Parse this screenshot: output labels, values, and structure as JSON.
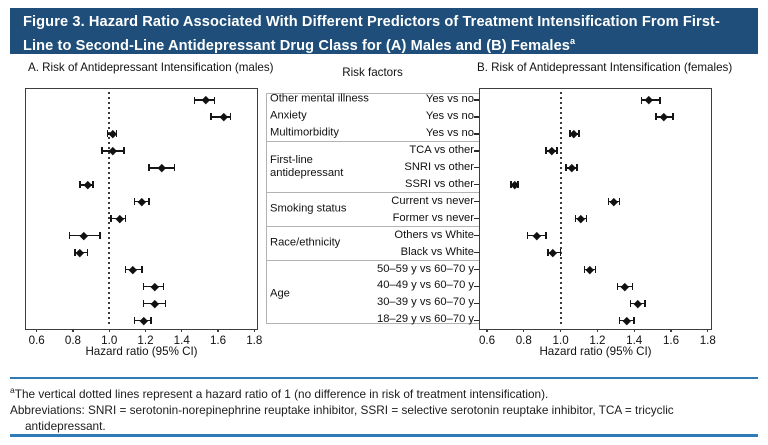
{
  "banner": {
    "lines": [
      "Figure 3. Hazard Ratio Associated With Different Predictors of Treatment Intensification From First-",
      "Line to Second-Line Antidepressant Drug Class for (A) Males and (B) Females"
    ],
    "superscript": "a"
  },
  "colors": {
    "banner_bg": "#1e4e79",
    "rule_blue": "#2f7bb7",
    "ink": "#1a1a1a"
  },
  "chart_data": {
    "type": "scatter",
    "subtype": "forest-plot",
    "middle_header": "Risk factors",
    "xlabel": "Hazard ratio (95% CI)",
    "xticks": [
      0.6,
      0.8,
      1.0,
      1.2,
      1.4,
      1.6,
      1.8
    ],
    "xlim": [
      0.55,
      1.85
    ],
    "reference_line": 1.0,
    "grid": false,
    "panels": [
      {
        "id": "A",
        "title": "A. Risk of Antidepressant Intensification (males)",
        "series": "male"
      },
      {
        "id": "B",
        "title": "B. Risk of Antidepressant Intensification (females)",
        "series": "female"
      }
    ],
    "row_groups": [
      {
        "label": "Other mental illness",
        "separator_after": false,
        "rows": [
          {
            "level": "Yes vs no",
            "male": {
              "hr": 1.53,
              "lo": 1.47,
              "hi": 1.58
            },
            "female": {
              "hr": 1.48,
              "lo": 1.44,
              "hi": 1.54
            }
          }
        ]
      },
      {
        "label": "Anxiety",
        "separator_after": false,
        "rows": [
          {
            "level": "Yes vs no",
            "male": {
              "hr": 1.63,
              "lo": 1.56,
              "hi": 1.67
            },
            "female": {
              "hr": 1.56,
              "lo": 1.52,
              "hi": 1.61
            }
          }
        ]
      },
      {
        "label": "Multimorbidity",
        "separator_after": true,
        "rows": [
          {
            "level": "Yes vs no",
            "male": {
              "hr": 1.02,
              "lo": 0.99,
              "hi": 1.04
            },
            "female": {
              "hr": 1.07,
              "lo": 1.05,
              "hi": 1.1
            }
          }
        ]
      },
      {
        "label": "First-line antidepressant",
        "separator_after": true,
        "rows": [
          {
            "level": "TCA vs other",
            "male": {
              "hr": 1.02,
              "lo": 0.96,
              "hi": 1.08
            },
            "female": {
              "hr": 0.95,
              "lo": 0.92,
              "hi": 0.98
            }
          },
          {
            "level": "SNRI vs other",
            "male": {
              "hr": 1.29,
              "lo": 1.22,
              "hi": 1.36
            },
            "female": {
              "hr": 1.06,
              "lo": 1.03,
              "hi": 1.09
            }
          },
          {
            "level": "SSRI vs other",
            "male": {
              "hr": 0.88,
              "lo": 0.84,
              "hi": 0.91
            },
            "female": {
              "hr": 0.75,
              "lo": 0.73,
              "hi": 0.77
            }
          }
        ]
      },
      {
        "label": "Smoking status",
        "separator_after": true,
        "rows": [
          {
            "level": "Current vs never",
            "male": {
              "hr": 1.18,
              "lo": 1.14,
              "hi": 1.22
            },
            "female": {
              "hr": 1.29,
              "lo": 1.26,
              "hi": 1.32
            }
          },
          {
            "level": "Former vs never",
            "male": {
              "hr": 1.06,
              "lo": 1.01,
              "hi": 1.09
            },
            "female": {
              "hr": 1.11,
              "lo": 1.08,
              "hi": 1.14
            }
          }
        ]
      },
      {
        "label": "Race/ethnicity",
        "separator_after": true,
        "rows": [
          {
            "level": "Others vs White",
            "male": {
              "hr": 0.86,
              "lo": 0.78,
              "hi": 0.95
            },
            "female": {
              "hr": 0.87,
              "lo": 0.82,
              "hi": 0.92
            }
          },
          {
            "level": "Black vs White",
            "male": {
              "hr": 0.84,
              "lo": 0.81,
              "hi": 0.88
            },
            "female": {
              "hr": 0.96,
              "lo": 0.93,
              "hi": 1.0
            }
          }
        ]
      },
      {
        "label": "Age",
        "separator_after": false,
        "rows": [
          {
            "level": "50–59 y vs 60–70 y",
            "male": {
              "hr": 1.13,
              "lo": 1.09,
              "hi": 1.18
            },
            "female": {
              "hr": 1.16,
              "lo": 1.13,
              "hi": 1.19
            }
          },
          {
            "level": "40–49 y vs 60–70 y",
            "male": {
              "hr": 1.25,
              "lo": 1.19,
              "hi": 1.3
            },
            "female": {
              "hr": 1.35,
              "lo": 1.31,
              "hi": 1.39
            }
          },
          {
            "level": "30–39 y vs 60–70 y",
            "male": {
              "hr": 1.25,
              "lo": 1.19,
              "hi": 1.31
            },
            "female": {
              "hr": 1.42,
              "lo": 1.38,
              "hi": 1.46
            }
          },
          {
            "level": "18–29 y vs 60–70 y",
            "male": {
              "hr": 1.19,
              "lo": 1.14,
              "hi": 1.23
            },
            "female": {
              "hr": 1.36,
              "lo": 1.32,
              "hi": 1.4
            }
          }
        ]
      }
    ]
  },
  "footnote": {
    "superscript": "a",
    "note": "The vertical dotted lines represent a hazard ratio of 1 (no difference in risk of treatment intensification).",
    "abbreviations_line1": "Abbreviations: SNRI = serotonin-norepinephrine reuptake inhibitor, SSRI = selective serotonin reuptake inhibitor, TCA = tricyclic",
    "abbreviations_line2": "antidepressant."
  }
}
